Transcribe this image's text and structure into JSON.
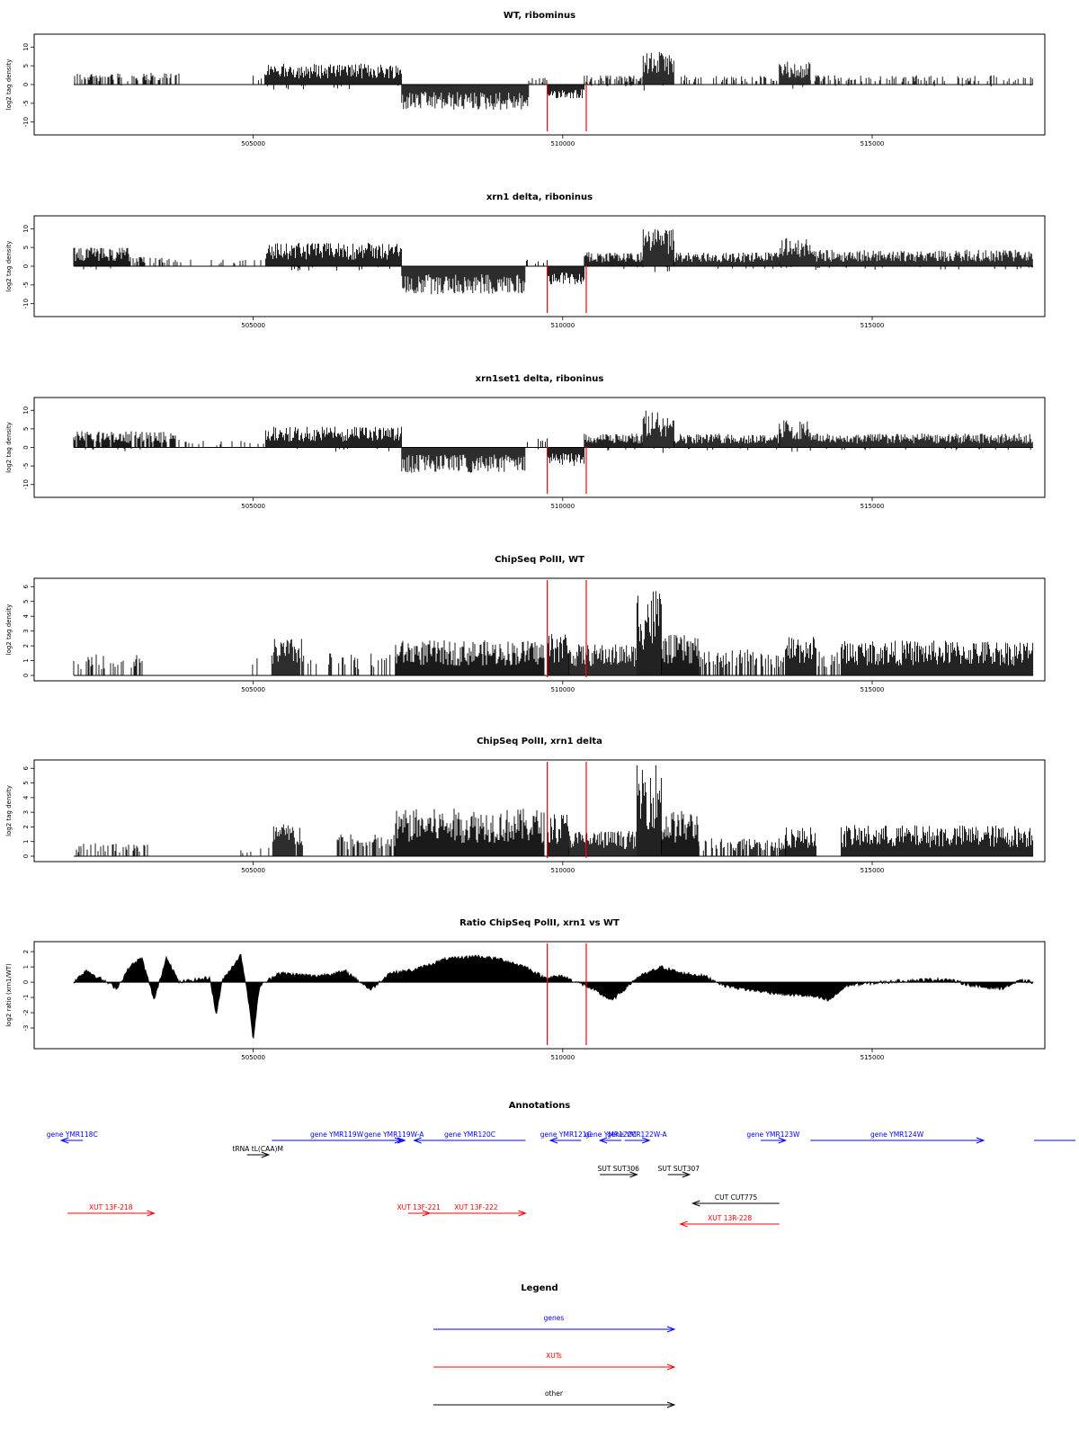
{
  "colors": {
    "track": "#000000",
    "marker": "#ff0000",
    "gene": "#0000ff",
    "xut": "#ff0000",
    "other": "#000000"
  },
  "chart_data": {
    "type": "area",
    "x_range": [
      502100,
      517600
    ],
    "x_ticks": [
      505000,
      510000,
      515000
    ],
    "x_tick_labels": [
      "505000",
      "510000",
      "515000"
    ],
    "vertical_markers": [
      509750,
      510380
    ],
    "panels": [
      {
        "title": "WT, ribominus",
        "ylabel": "log2 tag density",
        "ylim": [
          -12,
          12
        ],
        "yticks": [
          -10,
          -5,
          0,
          5,
          10
        ],
        "ytick_labels": [
          "-10",
          "-5",
          "0",
          "5",
          "10"
        ],
        "style": "spikes",
        "segments": [
          {
            "x": [
              502100,
              503800
            ],
            "level": 2.5,
            "sign": 1,
            "density": 0.5
          },
          {
            "x": [
              505000,
              505200
            ],
            "level": 2.5,
            "sign": 1,
            "density": 0.3
          },
          {
            "x": [
              505200,
              507400
            ],
            "level": 4.5,
            "sign": 1,
            "density": 1
          },
          {
            "x": [
              507400,
              509450
            ],
            "level": -5.5,
            "sign": -1,
            "density": 1
          },
          {
            "x": [
              509450,
              509750
            ],
            "level": 1.5,
            "sign": 1,
            "density": 0.3
          },
          {
            "x": [
              509750,
              510350
            ],
            "level": -3,
            "sign": -1,
            "density": 1
          },
          {
            "x": [
              510350,
              511300
            ],
            "level": 2,
            "sign": 1,
            "density": 0.5
          },
          {
            "x": [
              511300,
              511800
            ],
            "level": 7,
            "sign": 1,
            "density": 1
          },
          {
            "x": [
              511800,
              513500
            ],
            "level": 2,
            "sign": 1,
            "density": 0.3
          },
          {
            "x": [
              513500,
              514000
            ],
            "level": 5,
            "sign": 1,
            "density": 1
          },
          {
            "x": [
              514000,
              517600
            ],
            "level": 2,
            "sign": 1,
            "density": 0.35
          }
        ]
      },
      {
        "title": "xrn1 delta, riboninus",
        "ylabel": "log2 tag density",
        "ylim": [
          -12,
          12
        ],
        "yticks": [
          -10,
          -5,
          0,
          5,
          10
        ],
        "ytick_labels": [
          "-10",
          "-5",
          "0",
          "5",
          "10"
        ],
        "style": "spikes",
        "segments": [
          {
            "x": [
              502100,
              503000
            ],
            "level": 4,
            "sign": 1,
            "density": 1
          },
          {
            "x": [
              503000,
              503800
            ],
            "level": 2,
            "sign": 1,
            "density": 0.4
          },
          {
            "x": [
              503800,
              505200
            ],
            "level": 1.5,
            "sign": 1,
            "density": 0.15
          },
          {
            "x": [
              505200,
              507400
            ],
            "level": 5,
            "sign": 1,
            "density": 1
          },
          {
            "x": [
              507400,
              509400
            ],
            "level": -6,
            "sign": -1,
            "density": 1
          },
          {
            "x": [
              509400,
              509750
            ],
            "level": 2,
            "sign": 1,
            "density": 0.3
          },
          {
            "x": [
              509750,
              510350
            ],
            "level": -4,
            "sign": -1,
            "density": 1
          },
          {
            "x": [
              510350,
              511300
            ],
            "level": 3,
            "sign": 1,
            "density": 1
          },
          {
            "x": [
              511300,
              511800
            ],
            "level": 8,
            "sign": 1,
            "density": 1
          },
          {
            "x": [
              511800,
              513500
            ],
            "level": 3,
            "sign": 1,
            "density": 1
          },
          {
            "x": [
              513500,
              514000
            ],
            "level": 6,
            "sign": 1,
            "density": 1
          },
          {
            "x": [
              514000,
              517600
            ],
            "level": 3.5,
            "sign": 1,
            "density": 1
          }
        ]
      },
      {
        "title": "xrn1set1 delta, riboninus",
        "ylabel": "log2 tag density",
        "ylim": [
          -12,
          12
        ],
        "yticks": [
          -10,
          -5,
          0,
          5,
          10
        ],
        "ytick_labels": [
          "-10",
          "-5",
          "0",
          "5",
          "10"
        ],
        "style": "spikes",
        "segments": [
          {
            "x": [
              502100,
              503800
            ],
            "level": 3.5,
            "sign": 1,
            "density": 0.8
          },
          {
            "x": [
              503800,
              505200
            ],
            "level": 1.5,
            "sign": 1,
            "density": 0.15
          },
          {
            "x": [
              505200,
              507400
            ],
            "level": 4.5,
            "sign": 1,
            "density": 1
          },
          {
            "x": [
              507400,
              509400
            ],
            "level": -5.5,
            "sign": -1,
            "density": 1
          },
          {
            "x": [
              509400,
              509750
            ],
            "level": 2,
            "sign": 1,
            "density": 0.3
          },
          {
            "x": [
              509750,
              510350
            ],
            "level": -4,
            "sign": -1,
            "density": 1
          },
          {
            "x": [
              510350,
              511300
            ],
            "level": 3,
            "sign": 1,
            "density": 1
          },
          {
            "x": [
              511300,
              511800
            ],
            "level": 8,
            "sign": 1,
            "density": 1
          },
          {
            "x": [
              511800,
              513500
            ],
            "level": 3,
            "sign": 1,
            "density": 1
          },
          {
            "x": [
              513500,
              514000
            ],
            "level": 6,
            "sign": 1,
            "density": 1
          },
          {
            "x": [
              514000,
              517600
            ],
            "level": 3,
            "sign": 1,
            "density": 1
          }
        ]
      },
      {
        "title": "ChipSeq PolII, WT",
        "ylabel": "log2 tag density",
        "ylim": [
          0,
          6.2
        ],
        "yticks": [
          0,
          1,
          2,
          3,
          4,
          5,
          6
        ],
        "ytick_labels": [
          "0",
          "1",
          "2",
          "3",
          "4",
          "5",
          "6"
        ],
        "style": "positive",
        "segments": [
          {
            "x": [
              502100,
              503300
            ],
            "level": 1.2,
            "sign": 1,
            "density": 0.3
          },
          {
            "x": [
              504800,
              505100
            ],
            "level": 1,
            "sign": 1,
            "density": 0.1
          },
          {
            "x": [
              505300,
              505800
            ],
            "level": 2,
            "sign": 1,
            "density": 0.9
          },
          {
            "x": [
              505800,
              507300
            ],
            "level": 1.2,
            "sign": 1,
            "density": 0.3
          },
          {
            "x": [
              507300,
              509700
            ],
            "level": 1.9,
            "sign": 1,
            "density": 1
          },
          {
            "x": [
              509750,
              510100
            ],
            "level": 2.4,
            "sign": 1,
            "density": 1
          },
          {
            "x": [
              510100,
              511200
            ],
            "level": 1.7,
            "sign": 1,
            "density": 1
          },
          {
            "x": [
              511200,
              511600
            ],
            "level": 4.8,
            "sign": 1,
            "density": 1
          },
          {
            "x": [
              511600,
              512200
            ],
            "level": 2.2,
            "sign": 1,
            "density": 1
          },
          {
            "x": [
              512200,
              513600
            ],
            "level": 1.4,
            "sign": 1,
            "density": 0.6
          },
          {
            "x": [
              513600,
              514100
            ],
            "level": 2.2,
            "sign": 1,
            "density": 1
          },
          {
            "x": [
              514100,
              514500
            ],
            "level": 1.3,
            "sign": 1,
            "density": 0.5
          },
          {
            "x": [
              514500,
              517600
            ],
            "level": 1.9,
            "sign": 1,
            "density": 1
          }
        ]
      },
      {
        "title": "ChipSeq PolII, xrn1 delta",
        "ylabel": "log2 tag density",
        "ylim": [
          0,
          6.2
        ],
        "yticks": [
          0,
          1,
          2,
          3,
          4,
          5,
          6
        ],
        "ytick_labels": [
          "0",
          "1",
          "2",
          "3",
          "4",
          "5",
          "6"
        ],
        "style": "positive",
        "segments": [
          {
            "x": [
              502100,
              503300
            ],
            "level": 0.7,
            "sign": 1,
            "density": 0.3
          },
          {
            "x": [
              504800,
              505300
            ],
            "level": 0.6,
            "sign": 1,
            "density": 0.2
          },
          {
            "x": [
              505300,
              505800
            ],
            "level": 1.8,
            "sign": 1,
            "density": 0.9
          },
          {
            "x": [
              506300,
              507300
            ],
            "level": 1.2,
            "sign": 1,
            "density": 0.6
          },
          {
            "x": [
              507300,
              509700
            ],
            "level": 2.6,
            "sign": 1,
            "density": 1
          },
          {
            "x": [
              509750,
              510100
            ],
            "level": 2.4,
            "sign": 1,
            "density": 1
          },
          {
            "x": [
              510100,
              511200
            ],
            "level": 1.4,
            "sign": 1,
            "density": 1
          },
          {
            "x": [
              511200,
              511600
            ],
            "level": 5.2,
            "sign": 1,
            "density": 1
          },
          {
            "x": [
              511600,
              512200
            ],
            "level": 2.5,
            "sign": 1,
            "density": 1
          },
          {
            "x": [
              512200,
              513600
            ],
            "level": 1,
            "sign": 1,
            "density": 0.6
          },
          {
            "x": [
              513600,
              514100
            ],
            "level": 1.6,
            "sign": 1,
            "density": 1
          },
          {
            "x": [
              514500,
              517600
            ],
            "level": 1.7,
            "sign": 1,
            "density": 1
          }
        ]
      },
      {
        "title": "Ratio ChipSeq PolII, xrn1 vs WT",
        "ylabel": "log2 ratio (xrn1/WT)",
        "ylim": [
          -4,
          2.3
        ],
        "yticks": [
          -3,
          -2,
          -1,
          0,
          1,
          2
        ],
        "ytick_labels": [
          "-3",
          "-2",
          "-1",
          "0",
          "1",
          "2"
        ],
        "style": "curve",
        "points": [
          [
            502100,
            0
          ],
          [
            502300,
            0.8
          ],
          [
            502500,
            0.3
          ],
          [
            502800,
            -0.4
          ],
          [
            503000,
            1
          ],
          [
            503200,
            1.6
          ],
          [
            503400,
            -1.2
          ],
          [
            503600,
            1.7
          ],
          [
            503800,
            0
          ],
          [
            504300,
            0.3
          ],
          [
            504400,
            -2.2
          ],
          [
            504500,
            0.1
          ],
          [
            504800,
            1.8
          ],
          [
            504900,
            -0.5
          ],
          [
            505000,
            -3.8
          ],
          [
            505100,
            -0.3
          ],
          [
            505400,
            0.6
          ],
          [
            506000,
            0.4
          ],
          [
            506500,
            0.7
          ],
          [
            506900,
            -0.5
          ],
          [
            507200,
            0.6
          ],
          [
            507600,
            0.8
          ],
          [
            508100,
            1.5
          ],
          [
            508600,
            1.7
          ],
          [
            509000,
            1.5
          ],
          [
            509400,
            1
          ],
          [
            509700,
            0.3
          ],
          [
            510000,
            0.4
          ],
          [
            510400,
            -0.3
          ],
          [
            510800,
            -1.2
          ],
          [
            511200,
            0.3
          ],
          [
            511600,
            1
          ],
          [
            511900,
            0.6
          ],
          [
            512300,
            0.4
          ],
          [
            512600,
            -0.2
          ],
          [
            513000,
            -0.5
          ],
          [
            513600,
            -0.8
          ],
          [
            514000,
            -0.9
          ],
          [
            514300,
            -1.2
          ],
          [
            514600,
            -0.2
          ],
          [
            515500,
            0.1
          ],
          [
            516200,
            0.2
          ],
          [
            516700,
            -0.3
          ],
          [
            517100,
            -0.4
          ],
          [
            517400,
            0.1
          ],
          [
            517600,
            0
          ]
        ]
      }
    ],
    "annotations_title": "Annotations",
    "annotations": [
      {
        "label": "gene YMR118C",
        "type": "gene",
        "start": 501900,
        "end": 502100,
        "dir": "reverse",
        "row": 1
      },
      {
        "label": "gene YMR119W",
        "type": "gene",
        "start": 505300,
        "end": 507400,
        "dir": "forward",
        "row": 1
      },
      {
        "label": "gene YMR119W-A",
        "type": "gene",
        "start": 507100,
        "end": 507400,
        "dir": "forward",
        "row": 1
      },
      {
        "label": "gene YMR120C",
        "type": "gene",
        "start": 507600,
        "end": 509400,
        "dir": "reverse",
        "row": 1
      },
      {
        "label": "gene YMR121C",
        "type": "gene",
        "start": 509800,
        "end": 510300,
        "dir": "reverse",
        "row": 1
      },
      {
        "label": "gene YMR122C",
        "type": "gene",
        "start": 510600,
        "end": 510800,
        "dir": "reverse",
        "row": 1
      },
      {
        "label": "gene YMR122W-A",
        "type": "gene",
        "start": 511000,
        "end": 511400,
        "dir": "forward",
        "row": 1
      },
      {
        "label": "gene YMR123W",
        "type": "gene",
        "start": 513200,
        "end": 513600,
        "dir": "forward",
        "row": 1
      },
      {
        "label": "gene YMR124W",
        "type": "gene",
        "start": 514000,
        "end": 516800,
        "dir": "forward",
        "row": 1
      },
      {
        "label": "tRNA tL(CAA)M",
        "type": "other",
        "start": 504900,
        "end": 505000,
        "dir": "forward",
        "row": 2
      },
      {
        "label": "SUT SUT306",
        "type": "other",
        "start": 510600,
        "end": 511200,
        "dir": "forward",
        "row": 3
      },
      {
        "label": "SUT SUT307",
        "type": "other",
        "start": 511700,
        "end": 512000,
        "dir": "forward",
        "row": 3
      },
      {
        "label": "CUT CUT775",
        "type": "other",
        "start": 512100,
        "end": 513500,
        "dir": "reverse",
        "row": 4
      },
      {
        "label": "XUT 13F-218",
        "type": "xut",
        "start": 502000,
        "end": 503400,
        "dir": "forward",
        "row": 5
      },
      {
        "label": "XUT 13F-221",
        "type": "xut",
        "start": 507500,
        "end": 507800,
        "dir": "forward",
        "row": 5
      },
      {
        "label": "XUT 13F-222",
        "type": "xut",
        "start": 507800,
        "end": 509400,
        "dir": "forward",
        "row": 5
      },
      {
        "label": "XUT 13R-228",
        "type": "xut",
        "start": 511900,
        "end": 513500,
        "dir": "reverse",
        "row": 6
      }
    ],
    "legend_title": "Legend",
    "legend": [
      {
        "label": "genes",
        "type": "gene"
      },
      {
        "label": "XUTs",
        "type": "xut"
      },
      {
        "label": "other",
        "type": "other"
      }
    ]
  }
}
